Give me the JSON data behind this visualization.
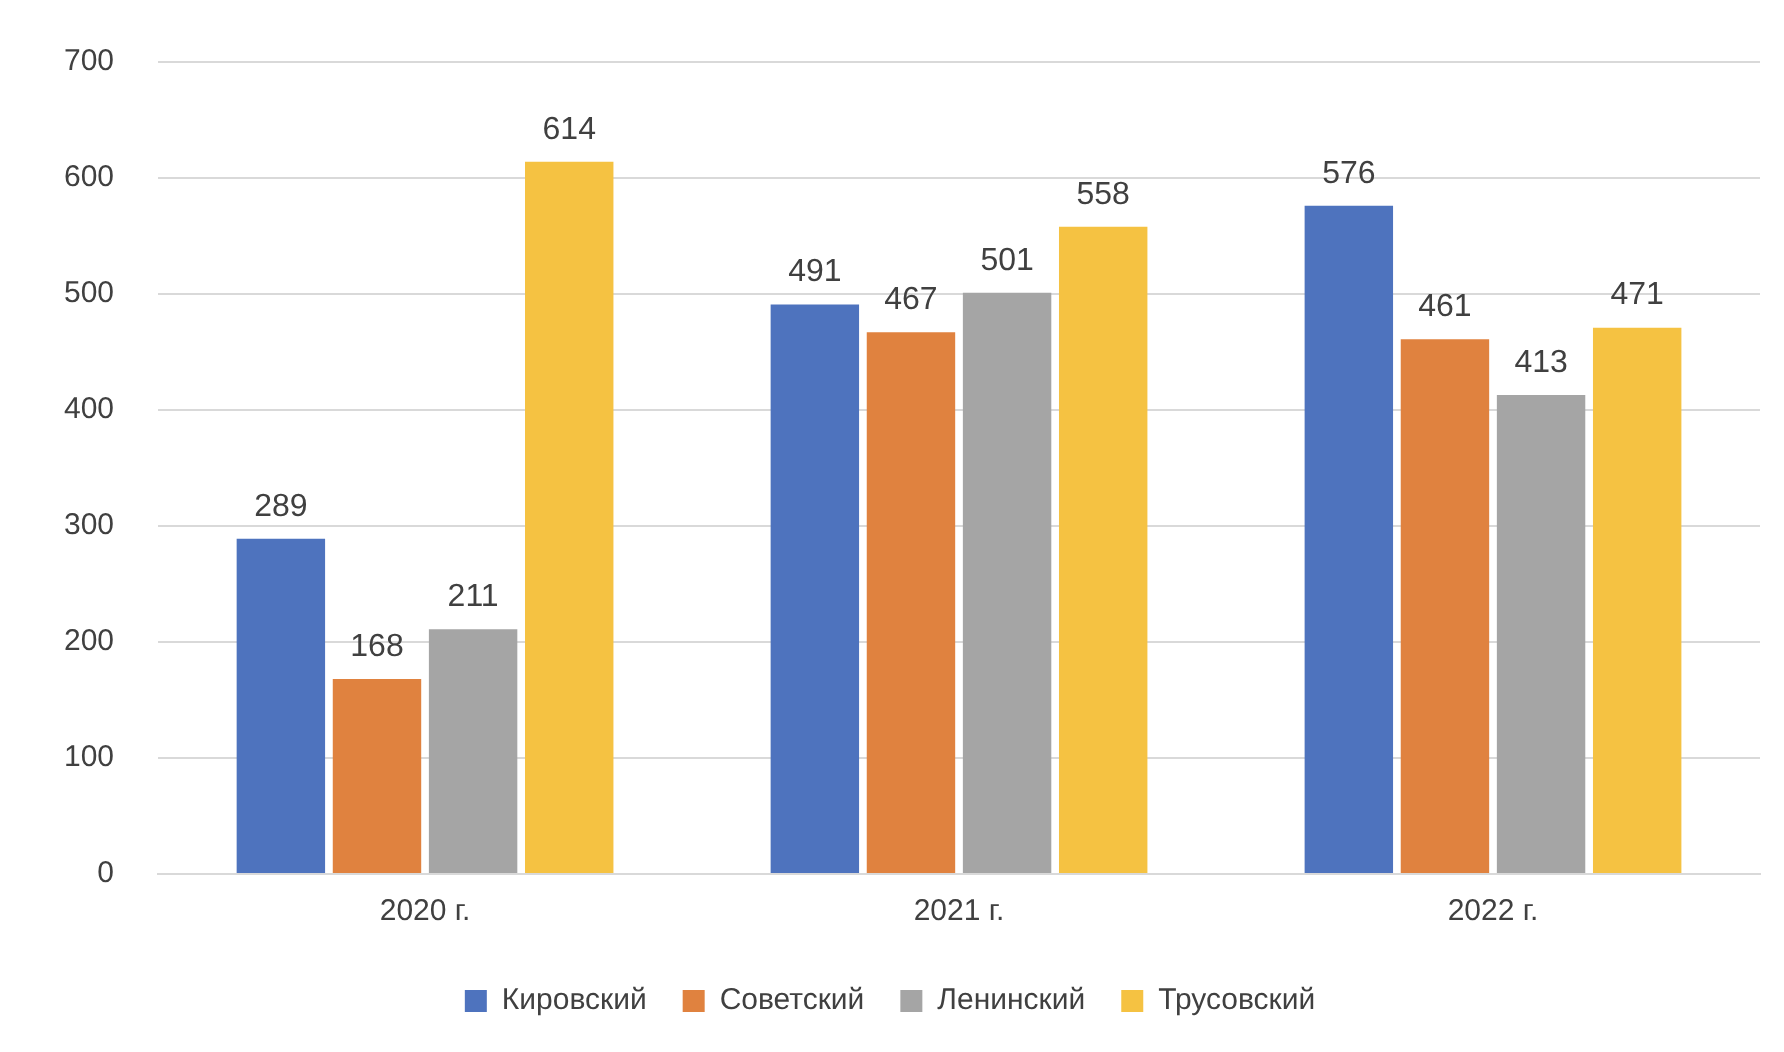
{
  "chart_data": {
    "type": "bar",
    "categories": [
      "2020 г.",
      "2021 г.",
      "2022 г."
    ],
    "series": [
      {
        "name": "Кировский",
        "color": "#4e73be",
        "values": [
          289,
          491,
          576
        ]
      },
      {
        "name": "Советский",
        "color": "#e0823f",
        "values": [
          168,
          467,
          461
        ]
      },
      {
        "name": "Ленинский",
        "color": "#a5a5a5",
        "values": [
          211,
          501,
          413
        ]
      },
      {
        "name": "Трусовский",
        "color": "#f5c242",
        "values": [
          614,
          558,
          471
        ]
      }
    ],
    "ylim": [
      0,
      700
    ],
    "yticks": [
      0,
      100,
      200,
      300,
      400,
      500,
      600,
      700
    ],
    "grid": "y",
    "legend": "bottom",
    "data_labels": true
  }
}
